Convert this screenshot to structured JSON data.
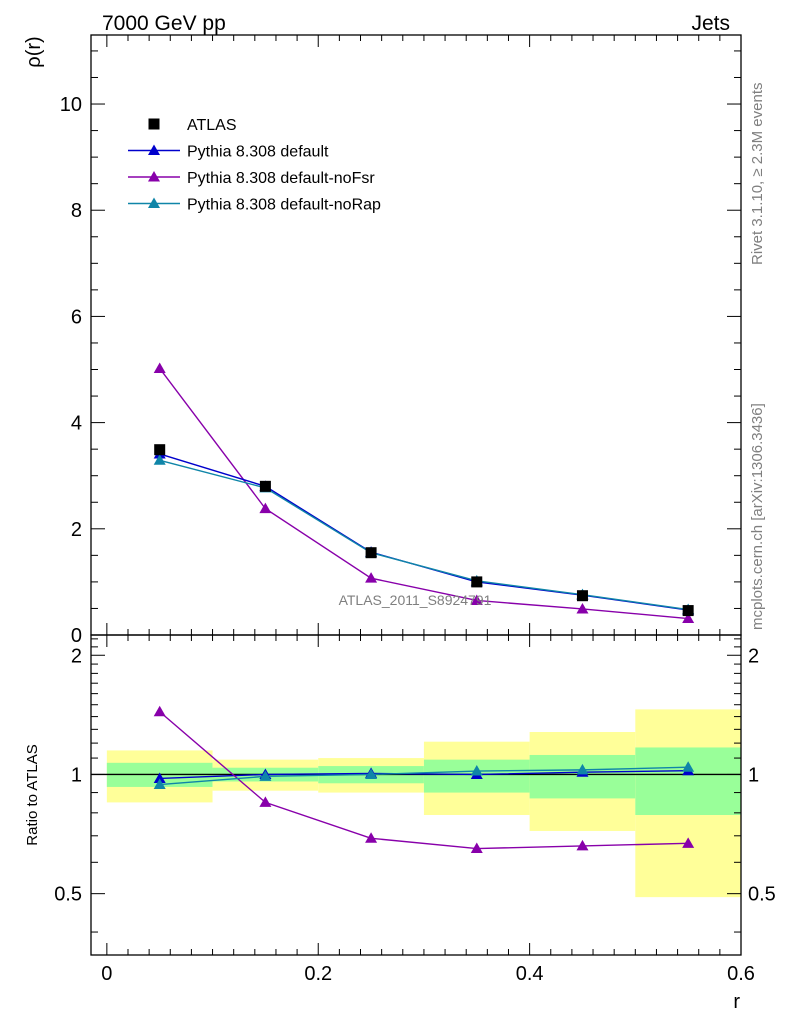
{
  "header": {
    "left": "7000 GeV pp",
    "right": "Jets"
  },
  "side_text": {
    "rivet": "Rivet 3.1.10, ≥ 2.3M events",
    "mcplots": "mcplots.cern.ch [arXiv:1306.3436]"
  },
  "watermark": "ATLAS_2011_S8924791",
  "colors": {
    "atlas": "#000000",
    "default": "#0000cc",
    "noFsr": "#8800aa",
    "noRap": "#0f85a8",
    "band_inner": "#99ff99",
    "band_outer": "#ffff99"
  },
  "chart_data": [
    {
      "type": "line",
      "panel": "main",
      "xlabel": "",
      "ylabel": "ρ(r)",
      "xlim": [
        -0.015,
        0.6
      ],
      "ylim": [
        0,
        11.3
      ],
      "yticks": [
        0,
        2,
        4,
        6,
        8,
        10
      ],
      "yticklabels": [
        "0",
        "2",
        "4",
        "6",
        "8",
        "10"
      ],
      "legend_position": "top-left",
      "x": [
        0.05,
        0.15,
        0.25,
        0.35,
        0.45,
        0.55
      ],
      "series": [
        {
          "name": "ATLAS",
          "marker": "square",
          "values": [
            3.49,
            2.8,
            1.55,
            1.0,
            0.74,
            0.46
          ]
        },
        {
          "name": "Pythia 8.308 default",
          "marker": "triangle",
          "values": [
            3.41,
            2.8,
            1.56,
            1.0,
            0.75,
            0.47
          ]
        },
        {
          "name": "Pythia 8.308 default-noFsr",
          "marker": "triangle",
          "values": [
            5.02,
            2.38,
            1.07,
            0.65,
            0.49,
            0.31
          ]
        },
        {
          "name": "Pythia 8.308 default-noRap",
          "marker": "triangle",
          "values": [
            3.29,
            2.77,
            1.55,
            1.02,
            0.76,
            0.48
          ]
        }
      ]
    },
    {
      "type": "line",
      "panel": "ratio",
      "xlabel": "r",
      "ylabel": "Ratio to ATLAS",
      "xlim": [
        -0.015,
        0.6
      ],
      "ylim": [
        0.35,
        2.25
      ],
      "xticks": [
        0,
        0.2,
        0.4,
        0.6
      ],
      "xticklabels": [
        "0",
        "0.2",
        "0.4",
        "0.6"
      ],
      "yticks": [
        0.5,
        1,
        2
      ],
      "yticklabels": [
        "0.5",
        "1",
        "2"
      ],
      "x": [
        0.05,
        0.15,
        0.25,
        0.35,
        0.45,
        0.55
      ],
      "bin_edges": [
        0,
        0.1,
        0.2,
        0.3,
        0.4,
        0.5,
        0.6
      ],
      "band_inner": {
        "lo": [
          0.93,
          0.96,
          0.95,
          0.9,
          0.87,
          0.79
        ],
        "hi": [
          1.07,
          1.04,
          1.05,
          1.09,
          1.12,
          1.17
        ]
      },
      "band_outer": {
        "lo": [
          0.85,
          0.91,
          0.9,
          0.79,
          0.72,
          0.49
        ],
        "hi": [
          1.15,
          1.09,
          1.1,
          1.21,
          1.28,
          1.46
        ]
      },
      "series": [
        {
          "name": "Pythia 8.308 default",
          "values": [
            0.977,
            1.0,
            1.006,
            1.0,
            1.013,
            1.022
          ]
        },
        {
          "name": "Pythia 8.308 default-noFsr",
          "values": [
            1.44,
            0.85,
            0.69,
            0.65,
            0.66,
            0.67
          ]
        },
        {
          "name": "Pythia 8.308 default-noRap",
          "values": [
            0.943,
            0.989,
            1.0,
            1.02,
            1.027,
            1.043
          ]
        }
      ]
    }
  ]
}
